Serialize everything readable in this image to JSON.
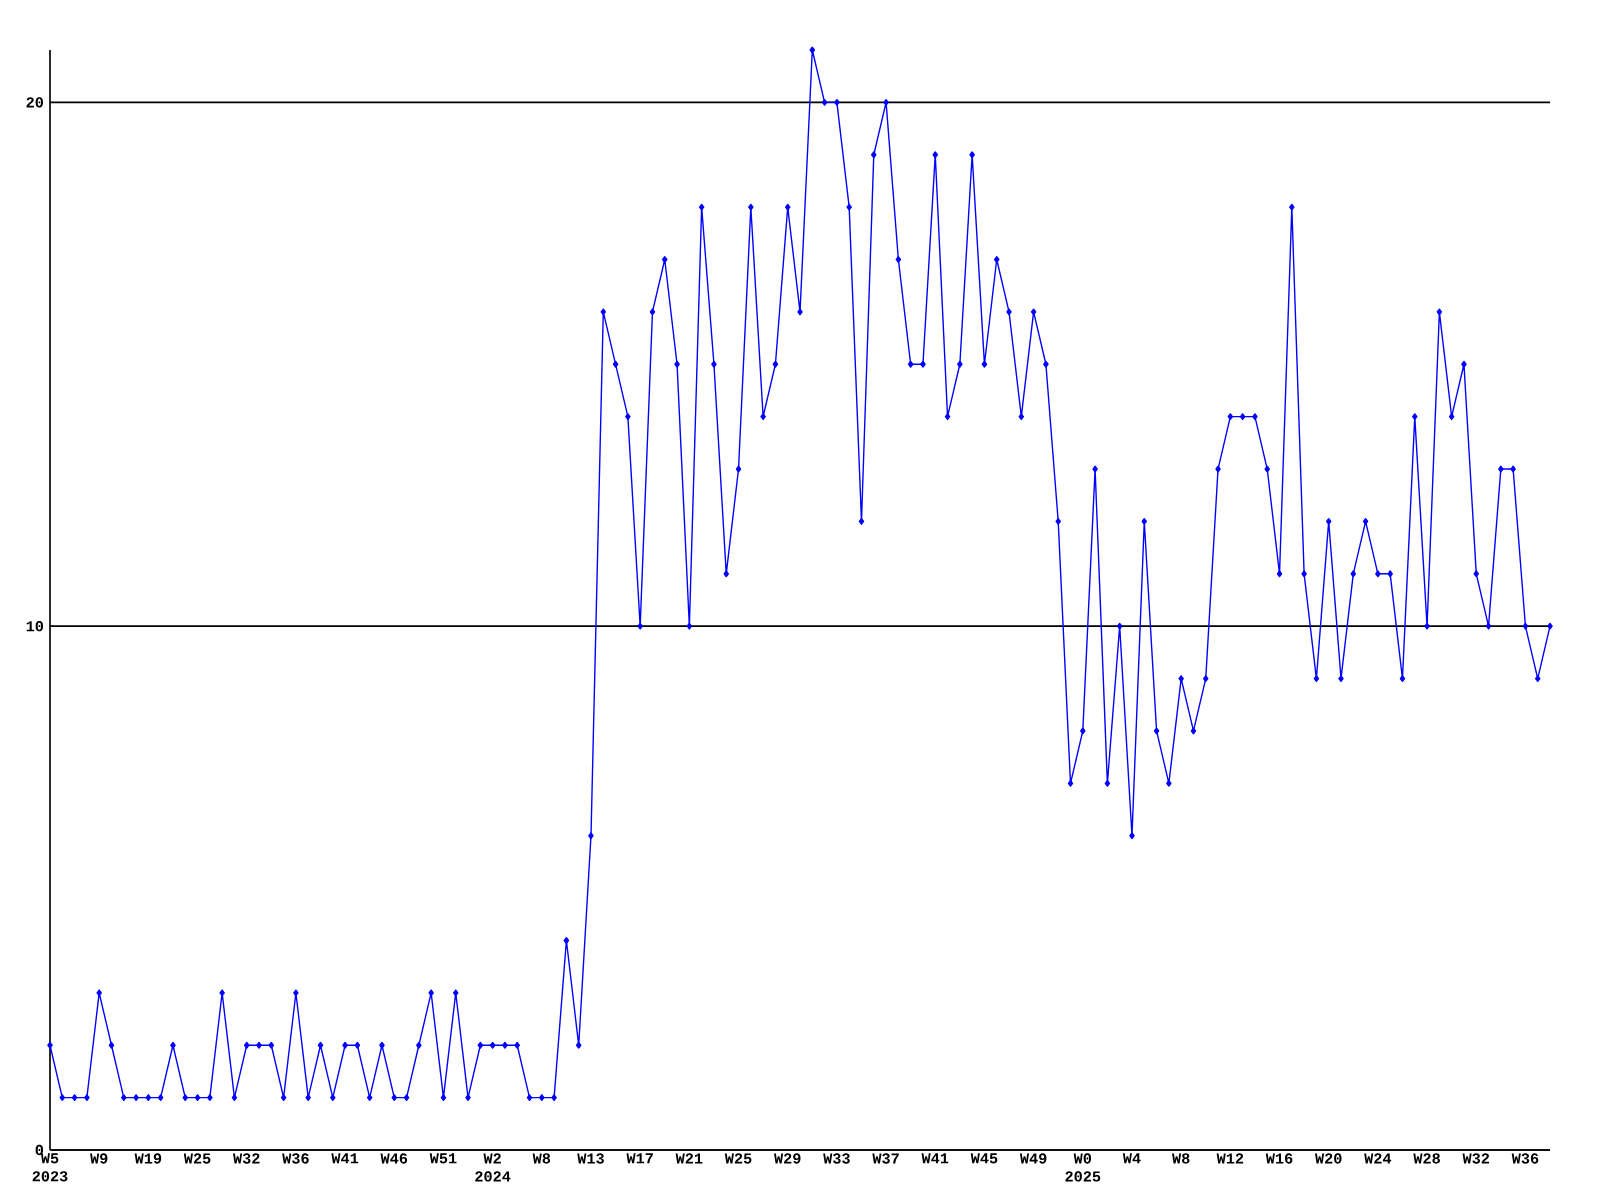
{
  "chart_data": {
    "type": "line",
    "color": "#0000ff",
    "marker": "diamond",
    "grid": "y",
    "ylim": [
      0,
      21
    ],
    "yticks": [
      0,
      10,
      20
    ],
    "categories": [
      "W5 2023",
      null,
      null,
      null,
      "W9",
      null,
      null,
      null,
      "W19",
      null,
      null,
      null,
      "W25",
      null,
      null,
      null,
      "W32",
      null,
      null,
      null,
      "W36",
      null,
      null,
      null,
      "W41",
      null,
      null,
      null,
      "W46",
      null,
      null,
      null,
      "W51",
      null,
      null,
      null,
      "W2 2024",
      null,
      null,
      null,
      "W8",
      null,
      null,
      null,
      "W13",
      null,
      null,
      null,
      "W17",
      null,
      null,
      null,
      "W21",
      null,
      null,
      null,
      "W25",
      null,
      null,
      null,
      "W29",
      null,
      null,
      null,
      "W33",
      null,
      null,
      null,
      "W37",
      null,
      null,
      null,
      "W41",
      null,
      null,
      null,
      "W45",
      null,
      null,
      null,
      "W49",
      null,
      null,
      null,
      "W0 2025",
      null,
      null,
      null,
      "W4",
      null,
      null,
      null,
      "W8",
      null,
      null,
      null,
      "W12",
      null,
      null,
      null,
      "W16",
      null,
      null,
      null,
      "W20",
      null,
      null,
      null,
      "W24",
      null,
      null,
      null,
      "W28",
      null,
      null,
      null,
      "W32",
      null,
      null,
      null,
      "W36",
      null,
      null
    ],
    "values": [
      2,
      1,
      1,
      1,
      3,
      2,
      1,
      1,
      1,
      1,
      2,
      1,
      1,
      1,
      3,
      1,
      2,
      2,
      2,
      1,
      3,
      1,
      2,
      1,
      2,
      2,
      1,
      2,
      1,
      1,
      2,
      3,
      1,
      3,
      1,
      2,
      2,
      2,
      2,
      1,
      1,
      1,
      4,
      2,
      6,
      16,
      15,
      14,
      10,
      16,
      17,
      15,
      10,
      18,
      15,
      11,
      13,
      18,
      14,
      15,
      18,
      16,
      21,
      20,
      20,
      18,
      12,
      19,
      20,
      17,
      15,
      15,
      19,
      14,
      15,
      19,
      15,
      17,
      16,
      14,
      16,
      15,
      12,
      7,
      8,
      13,
      7,
      10,
      6,
      12,
      8,
      7,
      9,
      8,
      9,
      13,
      14,
      14,
      14,
      13,
      11,
      18,
      11,
      9,
      12,
      9,
      11,
      12,
      11,
      11,
      9,
      14,
      10,
      16,
      14,
      15,
      11,
      10,
      13,
      13,
      10,
      9,
      10
    ]
  }
}
